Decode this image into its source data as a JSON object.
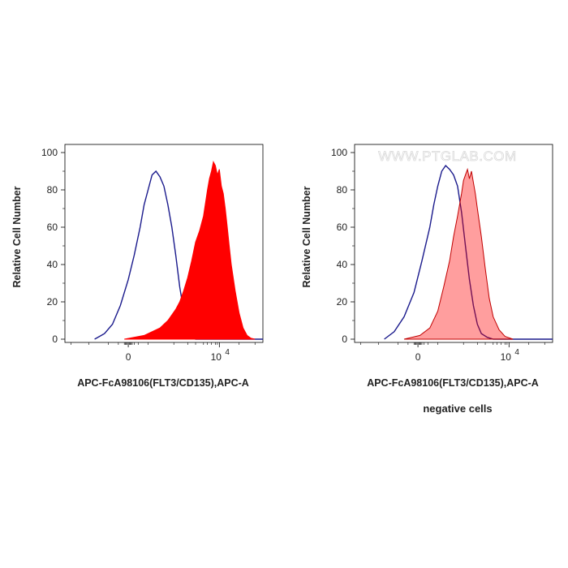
{
  "chart_data": [
    {
      "type": "area",
      "xlabel": "APC-FcA98106(FLT3/CD135),APC-A",
      "ylabel": "Relative Cell Number",
      "x_tick_labels": [
        "0",
        "10"
      ],
      "x_tick_exponent": "4",
      "y_ticks": [
        0,
        20,
        40,
        60,
        80,
        100
      ],
      "ylim": [
        0,
        100
      ],
      "grid": false,
      "series": [
        {
          "role": "control",
          "style": "line",
          "color": "#1a1a8c",
          "x": [
            0.15,
            0.2,
            0.24,
            0.28,
            0.32,
            0.35,
            0.38,
            0.4,
            0.42,
            0.44,
            0.46,
            0.48,
            0.5,
            0.52,
            0.54,
            0.56,
            0.58,
            0.6,
            0.62,
            0.64,
            0.66,
            1.0
          ],
          "y": [
            0,
            3,
            8,
            18,
            32,
            45,
            60,
            72,
            80,
            88,
            90,
            87,
            82,
            72,
            60,
            45,
            28,
            15,
            7,
            3,
            0,
            0
          ]
        },
        {
          "role": "stained",
          "style": "area",
          "color": "#ff0000",
          "opacity": 1.0,
          "x": [
            0.3,
            0.4,
            0.48,
            0.52,
            0.56,
            0.58,
            0.6,
            0.62,
            0.64,
            0.66,
            0.68,
            0.7,
            0.72,
            0.73,
            0.74,
            0.75,
            0.76,
            0.77,
            0.78,
            0.79,
            0.8,
            0.81,
            0.82,
            0.83,
            0.84,
            0.86,
            0.88,
            0.9,
            0.92,
            0.94,
            0.96
          ],
          "y": [
            0,
            2,
            6,
            10,
            16,
            20,
            26,
            33,
            42,
            52,
            58,
            66,
            80,
            86,
            90,
            95,
            93,
            88,
            91,
            82,
            78,
            70,
            60,
            50,
            40,
            26,
            14,
            6,
            2,
            0.5,
            0
          ]
        }
      ]
    },
    {
      "type": "area",
      "xlabel": "APC-FcA98106(FLT3/CD135),APC-A",
      "ylabel": "Relative Cell Number",
      "subtitle": "negative cells",
      "watermark": "WWW.PTGLAB.COM",
      "x_tick_labels": [
        "0",
        "10"
      ],
      "x_tick_exponent": "4",
      "y_ticks": [
        0,
        20,
        40,
        60,
        80,
        100
      ],
      "ylim": [
        0,
        100
      ],
      "grid": false,
      "series": [
        {
          "role": "control",
          "style": "line",
          "color": "#1a1a8c",
          "x": [
            0.15,
            0.2,
            0.25,
            0.3,
            0.34,
            0.38,
            0.4,
            0.42,
            0.44,
            0.46,
            0.48,
            0.5,
            0.52,
            0.54,
            0.56,
            0.58,
            0.6,
            0.62,
            0.64,
            0.67,
            0.7,
            1.0
          ],
          "y": [
            0,
            4,
            12,
            25,
            42,
            60,
            72,
            82,
            90,
            93,
            91,
            88,
            82,
            68,
            50,
            32,
            18,
            8,
            3,
            1,
            0,
            0
          ]
        },
        {
          "role": "negative",
          "style": "area",
          "color": "#ff0000",
          "opacity": 0.38,
          "x": [
            0.25,
            0.33,
            0.38,
            0.42,
            0.45,
            0.48,
            0.5,
            0.52,
            0.54,
            0.55,
            0.56,
            0.57,
            0.58,
            0.59,
            0.6,
            0.61,
            0.62,
            0.64,
            0.66,
            0.68,
            0.7,
            0.73,
            0.76,
            0.8
          ],
          "y": [
            0,
            2,
            6,
            15,
            28,
            42,
            55,
            66,
            78,
            85,
            88,
            91,
            86,
            90,
            84,
            78,
            70,
            55,
            38,
            22,
            12,
            5,
            1.5,
            0
          ]
        }
      ]
    }
  ]
}
